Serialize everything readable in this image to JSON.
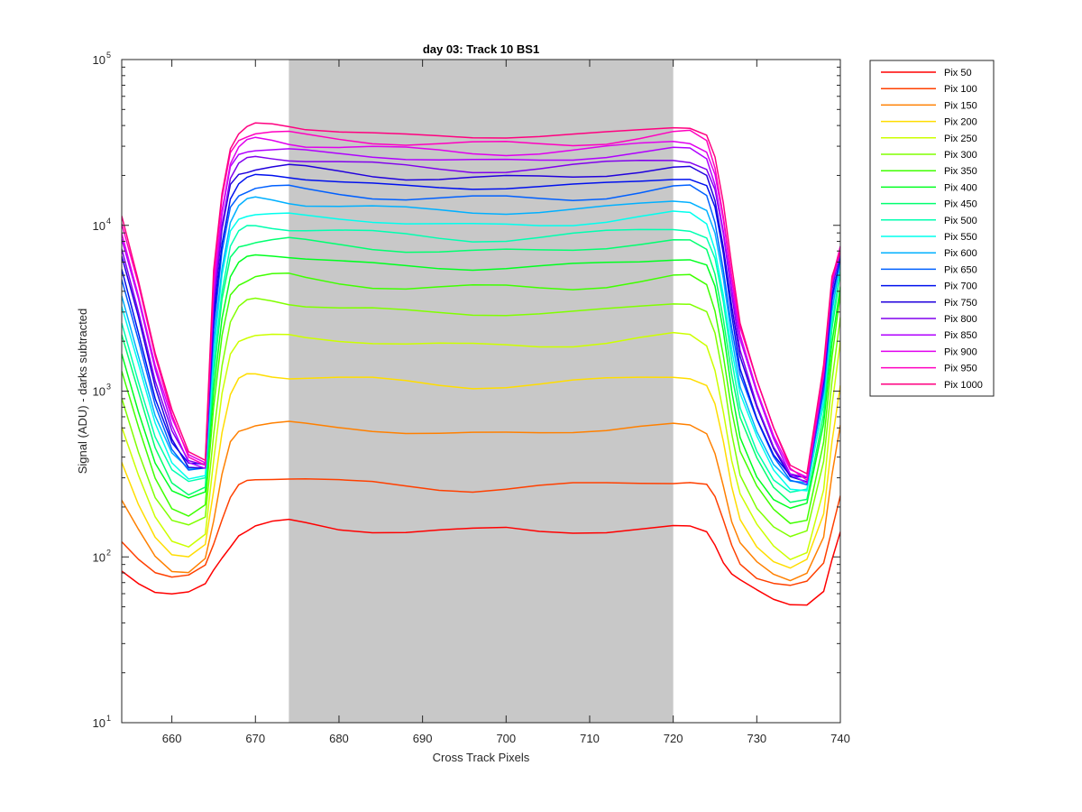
{
  "chart_data": {
    "type": "line",
    "title": "day 03: Track 10  BS1",
    "xlabel": "Cross Track Pixels",
    "ylabel": "Signal (ADU) - darks subtracted",
    "xlim": [
      654,
      740
    ],
    "ylim": [
      10,
      100000
    ],
    "yscale": "log",
    "grid": false,
    "legend_position": "outside-right",
    "xticks": [
      660,
      670,
      680,
      690,
      700,
      710,
      720,
      730,
      740
    ],
    "yticks": [
      {
        "value": 10,
        "base": "10",
        "exponent": "1"
      },
      {
        "value": 100,
        "base": "10",
        "exponent": "2"
      },
      {
        "value": 1000,
        "base": "10",
        "exponent": "3"
      },
      {
        "value": 10000,
        "base": "10",
        "exponent": "4"
      },
      {
        "value": 100000,
        "base": "10",
        "exponent": "5"
      }
    ],
    "shaded_region": {
      "x_start": 674,
      "x_end": 720,
      "color": "#c8c8c8"
    },
    "x": [
      654,
      656,
      658,
      660,
      662,
      664,
      665,
      666,
      667,
      668,
      669,
      670,
      672,
      674,
      676,
      680,
      684,
      688,
      692,
      696,
      700,
      704,
      708,
      712,
      716,
      720,
      722,
      724,
      725,
      726,
      727,
      728,
      730,
      732,
      734,
      736,
      738,
      739,
      740
    ],
    "series": [
      {
        "name": "Pix 50",
        "color": "#ff0000",
        "values": [
          80,
          68,
          62,
          62,
          63,
          68,
          80,
          95,
          115,
          140,
          150,
          155,
          158,
          160,
          158,
          150,
          148,
          145,
          143,
          142,
          145,
          143,
          145,
          146,
          148,
          150,
          148,
          140,
          120,
          95,
          80,
          72,
          62,
          55,
          52,
          52,
          62,
          95,
          140
        ]
      },
      {
        "name": "Pix 100",
        "color": "#ff4000",
        "values": [
          125,
          100,
          82,
          75,
          76,
          88,
          120,
          170,
          230,
          270,
          285,
          292,
          298,
          300,
          295,
          285,
          278,
          268,
          260,
          255,
          258,
          262,
          268,
          275,
          285,
          292,
          290,
          270,
          220,
          160,
          118,
          95,
          78,
          70,
          65,
          68,
          90,
          150,
          245
        ]
      },
      {
        "name": "Pix 150",
        "color": "#ff8000",
        "values": [
          210,
          140,
          100,
          85,
          85,
          100,
          160,
          300,
          480,
          580,
          620,
          640,
          640,
          635,
          620,
          600,
          585,
          570,
          560,
          555,
          555,
          560,
          570,
          585,
          610,
          630,
          620,
          560,
          430,
          270,
          160,
          118,
          92,
          80,
          75,
          82,
          130,
          300,
          600
        ]
      },
      {
        "name": "Pix 200",
        "color": "#ffdd00",
        "values": [
          380,
          210,
          130,
          100,
          98,
          120,
          260,
          580,
          950,
          1150,
          1220,
          1260,
          1260,
          1250,
          1220,
          1180,
          1150,
          1120,
          1100,
          1090,
          1095,
          1100,
          1120,
          1150,
          1200,
          1250,
          1240,
          1100,
          820,
          480,
          260,
          170,
          118,
          95,
          85,
          95,
          180,
          500,
          1100
        ]
      },
      {
        "name": "Pix 250",
        "color": "#ccff00",
        "values": [
          600,
          300,
          170,
          125,
          118,
          140,
          380,
          950,
          1650,
          2000,
          2120,
          2180,
          2180,
          2160,
          2100,
          2030,
          1980,
          1930,
          1900,
          1880,
          1885,
          1900,
          1930,
          1980,
          2060,
          2150,
          2130,
          1900,
          1400,
          780,
          380,
          230,
          150,
          115,
          100,
          112,
          260,
          800,
          1900
        ]
      },
      {
        "name": "Pix 300",
        "color": "#80ff00",
        "values": [
          950,
          450,
          230,
          160,
          148,
          170,
          560,
          1500,
          2700,
          3200,
          3400,
          3500,
          3500,
          3450,
          3350,
          3200,
          3100,
          3000,
          2950,
          2920,
          2930,
          2950,
          3000,
          3100,
          3250,
          3400,
          3380,
          3000,
          2200,
          1200,
          560,
          320,
          200,
          150,
          128,
          140,
          380,
          1200,
          2900
        ]
      },
      {
        "name": "Pix 350",
        "color": "#40ff00",
        "values": [
          1300,
          600,
          300,
          200,
          180,
          205,
          780,
          2100,
          3800,
          4500,
          4800,
          4950,
          4950,
          4900,
          4750,
          4550,
          4400,
          4280,
          4200,
          4160,
          4170,
          4200,
          4280,
          4420,
          4620,
          4850,
          4820,
          4300,
          3100,
          1700,
          780,
          430,
          260,
          190,
          160,
          170,
          500,
          1600,
          3800
        ]
      },
      {
        "name": "Pix 400",
        "color": "#00ff20",
        "values": [
          1700,
          780,
          380,
          250,
          220,
          240,
          1000,
          2800,
          5000,
          6000,
          6400,
          6550,
          6550,
          6480,
          6300,
          6050,
          5850,
          5680,
          5580,
          5520,
          5540,
          5580,
          5680,
          5870,
          6140,
          6450,
          6400,
          5700,
          4100,
          2200,
          1000,
          550,
          320,
          225,
          190,
          200,
          620,
          2000,
          4500
        ]
      },
      {
        "name": "Pix 450",
        "color": "#00ff70",
        "values": [
          2100,
          950,
          450,
          290,
          250,
          270,
          1200,
          3400,
          6200,
          7500,
          8000,
          8200,
          8200,
          8120,
          7900,
          7600,
          7350,
          7150,
          7020,
          6950,
          6970,
          7020,
          7150,
          7380,
          7720,
          8100,
          8050,
          7150,
          5150,
          2750,
          1250,
          680,
          390,
          265,
          220,
          228,
          720,
          2300,
          5000
        ]
      },
      {
        "name": "Pix 500",
        "color": "#00ffb0",
        "values": [
          2600,
          1150,
          530,
          330,
          280,
          300,
          1450,
          4100,
          7500,
          9000,
          9600,
          9850,
          9850,
          9750,
          9500,
          9150,
          8850,
          8600,
          8450,
          8370,
          8390,
          8450,
          8600,
          8880,
          9300,
          9750,
          9700,
          8600,
          6200,
          3300,
          1500,
          800,
          450,
          300,
          245,
          250,
          820,
          2600,
          5400
        ]
      },
      {
        "name": "Pix 550",
        "color": "#00ffee",
        "values": [
          3200,
          1400,
          620,
          370,
          305,
          320,
          1700,
          4900,
          9000,
          10800,
          11500,
          11800,
          11800,
          11700,
          11400,
          10950,
          10600,
          10300,
          10120,
          10020,
          10050,
          10120,
          10300,
          10640,
          11150,
          11700,
          11620,
          10300,
          7400,
          3950,
          1780,
          930,
          510,
          330,
          265,
          265,
          900,
          2900,
          5800
        ]
      },
      {
        "name": "Pix 600",
        "color": "#00b0ff",
        "values": [
          3900,
          1700,
          720,
          410,
          325,
          335,
          2000,
          5800,
          10800,
          13000,
          13800,
          14200,
          14200,
          14080,
          13700,
          13180,
          12750,
          12400,
          12180,
          12060,
          12090,
          12180,
          12400,
          12800,
          13400,
          14080,
          13980,
          12400,
          8900,
          4700,
          2100,
          1080,
          580,
          360,
          280,
          275,
          980,
          3200,
          6100
        ]
      },
      {
        "name": "Pix 650",
        "color": "#0060ff",
        "values": [
          4700,
          2000,
          820,
          450,
          340,
          345,
          2300,
          6800,
          12800,
          15400,
          16400,
          16900,
          16900,
          16750,
          16300,
          15680,
          15170,
          14750,
          14490,
          14350,
          14380,
          14490,
          14750,
          15230,
          15940,
          16750,
          16630,
          14750,
          10600,
          5600,
          2480,
          1250,
          650,
          390,
          290,
          280,
          1050,
          3500,
          6400
        ]
      },
      {
        "name": "Pix 700",
        "color": "#0010ee",
        "values": [
          5500,
          2350,
          940,
          490,
          355,
          350,
          2650,
          7900,
          14900,
          18000,
          19200,
          19800,
          19800,
          19600,
          19100,
          18350,
          17750,
          17260,
          16960,
          16800,
          16830,
          16960,
          17260,
          17820,
          18650,
          19600,
          19470,
          17260,
          12400,
          6500,
          2880,
          1420,
          720,
          420,
          300,
          285,
          1100,
          3800,
          6700
        ]
      },
      {
        "name": "Pix 750",
        "color": "#2000dd",
        "values": [
          6300,
          2700,
          1050,
          530,
          365,
          352,
          3000,
          9000,
          17000,
          20500,
          21900,
          22600,
          22600,
          22370,
          21800,
          20950,
          20260,
          19700,
          19360,
          19170,
          19210,
          19360,
          19700,
          20340,
          21290,
          22370,
          22220,
          19700,
          14150,
          7450,
          3280,
          1600,
          790,
          450,
          310,
          290,
          1150,
          4000,
          6900
        ]
      },
      {
        "name": "Pix 800",
        "color": "#8000ee",
        "values": [
          7200,
          3050,
          1170,
          575,
          375,
          355,
          3400,
          10200,
          19300,
          23300,
          24900,
          25700,
          25700,
          25440,
          24790,
          23820,
          23040,
          22400,
          22010,
          21800,
          21840,
          22010,
          22400,
          23130,
          24210,
          25440,
          25270,
          22400,
          16100,
          8450,
          3700,
          1780,
          860,
          480,
          318,
          292,
          1200,
          4200,
          7000
        ]
      },
      {
        "name": "Pix 850",
        "color": "#b000ff",
        "values": [
          8200,
          3450,
          1300,
          620,
          385,
          358,
          3850,
          11500,
          21800,
          26300,
          28100,
          29000,
          29000,
          28700,
          27970,
          26880,
          26000,
          25280,
          24840,
          24600,
          24650,
          24840,
          25280,
          26100,
          27320,
          28700,
          28510,
          25280,
          18150,
          9550,
          4150,
          1990,
          940,
          510,
          325,
          295,
          1250,
          4400,
          7100
        ]
      },
      {
        "name": "Pix 900",
        "color": "#e000ee",
        "values": [
          9200,
          3900,
          1450,
          670,
          395,
          360,
          4300,
          12900,
          24400,
          29400,
          31400,
          32400,
          32400,
          32070,
          31250,
          30030,
          29050,
          28240,
          27750,
          27480,
          27540,
          27750,
          28240,
          29160,
          30520,
          32070,
          31850,
          28240,
          20300,
          10650,
          4620,
          2200,
          1030,
          545,
          333,
          298,
          1300,
          4600,
          7200
        ]
      },
      {
        "name": "Pix 950",
        "color": "#ff00c0",
        "values": [
          10300,
          4350,
          1600,
          720,
          405,
          362,
          4800,
          14400,
          27200,
          32800,
          35000,
          36100,
          36100,
          35730,
          34820,
          33460,
          32370,
          31470,
          30920,
          30620,
          30690,
          30920,
          31470,
          32490,
          34010,
          35730,
          35490,
          31470,
          22600,
          11850,
          5130,
          2420,
          1120,
          580,
          340,
          300,
          1350,
          4800,
          7300
        ]
      },
      {
        "name": "Pix 1000",
        "color": "#ff0080",
        "values": [
          11500,
          4850,
          1780,
          780,
          415,
          365,
          5300,
          16000,
          30200,
          36400,
          38900,
          40100,
          40100,
          39700,
          38680,
          37170,
          35960,
          34960,
          34350,
          34020,
          34090,
          34350,
          34960,
          36100,
          37780,
          39700,
          39430,
          34960,
          25100,
          13150,
          5680,
          2650,
          1220,
          615,
          348,
          302,
          1400,
          5000,
          7400
        ]
      }
    ]
  }
}
